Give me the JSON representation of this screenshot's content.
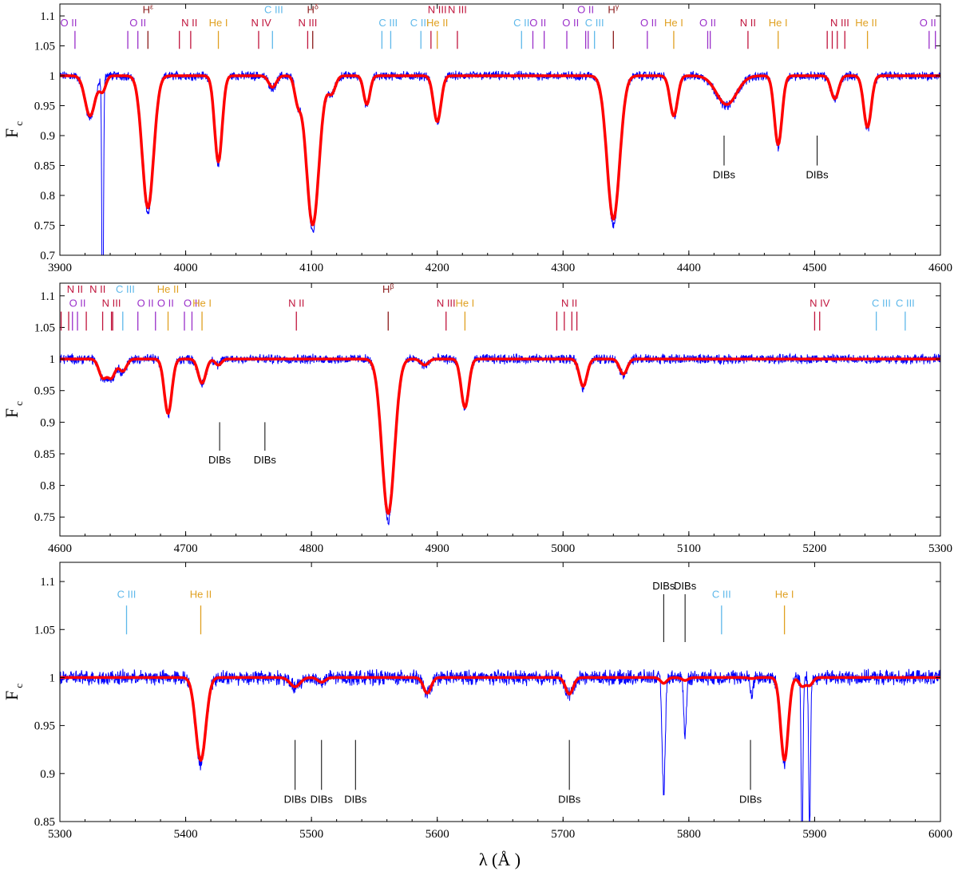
{
  "colors": {
    "observed": "#0000ff",
    "model": "#ff0000",
    "OII": "#9a2fc9",
    "NII": "#c0143c",
    "NIII": "#c0143c",
    "NIV": "#c0143c",
    "CIII": "#5eb8ea",
    "CII": "#5eb8ea",
    "HeI": "#e0a020",
    "HeII": "#e0a020",
    "H": "#8b1a1a",
    "DIB": "#000000"
  },
  "labels": {
    "ylabel_main": "F",
    "ylabel_sub": "c",
    "xlabel": "λ (Å )"
  },
  "chart_data": [
    {
      "type": "line",
      "xlim": [
        3900,
        4600
      ],
      "ylim": [
        0.7,
        1.12
      ],
      "xticks": [
        3900,
        4000,
        4100,
        4200,
        4300,
        4400,
        4500,
        4600
      ],
      "yticks": [
        "0.7",
        "0.75",
        "0.8",
        "0.85",
        "0.9",
        "0.95",
        "1",
        "1.05",
        "1.1"
      ],
      "absorption_lines": [
        {
          "x": 3924,
          "depth": 0.07,
          "width": 4
        },
        {
          "x": 3934,
          "depth": 0.5,
          "width": 0.6
        },
        {
          "x": 3970,
          "depth": 0.23,
          "width": 4.5
        },
        {
          "x": 4026,
          "depth": 0.15,
          "width": 3
        },
        {
          "x": 4069,
          "depth": 0.02,
          "width": 3
        },
        {
          "x": 4089,
          "depth": 0.04,
          "width": 2
        },
        {
          "x": 4101,
          "depth": 0.26,
          "width": 5
        },
        {
          "x": 4116,
          "depth": 0.03,
          "width": 3
        },
        {
          "x": 4144,
          "depth": 0.05,
          "width": 2.5
        },
        {
          "x": 4200,
          "depth": 0.08,
          "width": 3
        },
        {
          "x": 4340,
          "depth": 0.25,
          "width": 5
        },
        {
          "x": 4388,
          "depth": 0.07,
          "width": 3
        },
        {
          "x": 4430,
          "depth": 0.05,
          "width": 8
        },
        {
          "x": 4471,
          "depth": 0.12,
          "width": 3
        },
        {
          "x": 4516,
          "depth": 0.04,
          "width": 3
        },
        {
          "x": 4542,
          "depth": 0.09,
          "width": 3
        }
      ],
      "line_ids": [
        {
          "label": "O II",
          "x": 3907,
          "color": "OII",
          "marks": [
            3912
          ],
          "row": 1
        },
        {
          "label": "O II",
          "x": 3962,
          "color": "OII",
          "marks": [
            3954,
            3962
          ],
          "row": 1
        },
        {
          "label": "Hε",
          "x": 3970,
          "color": "H",
          "marks": [
            3970
          ],
          "row": 0
        },
        {
          "label": "N II",
          "x": 4003,
          "color": "NII",
          "marks": [
            3995,
            4004
          ],
          "row": 1
        },
        {
          "label": "He I",
          "x": 4026,
          "color": "HeI",
          "marks": [
            4026
          ],
          "row": 1
        },
        {
          "label": "N IV",
          "x": 4060,
          "color": "NIV",
          "marks": [
            4058
          ],
          "row": 1
        },
        {
          "label": "C III",
          "x": 4070,
          "color": "CIII",
          "marks": [
            4069
          ],
          "row": 0
        },
        {
          "label": "N III",
          "x": 4097,
          "color": "NII",
          "marks": [
            4097
          ],
          "row": 1
        },
        {
          "label": "Hδ",
          "x": 4101,
          "color": "H",
          "marks": [
            4101
          ],
          "row": 0
        },
        {
          "label": "C III",
          "x": 4161,
          "color": "CIII",
          "marks": [
            4156,
            4163
          ],
          "row": 1
        },
        {
          "label": "C III",
          "x": 4186,
          "color": "CIII",
          "marks": [
            4187
          ],
          "row": 1
        },
        {
          "label": "N III",
          "x": 4200,
          "color": "NIII",
          "marks": [
            4195
          ],
          "row": 0
        },
        {
          "label": "He II",
          "x": 4200,
          "color": "HeII",
          "marks": [
            4200
          ],
          "row": 1
        },
        {
          "label": "N III",
          "x": 4216,
          "color": "NIII",
          "marks": [
            4216
          ],
          "row": 0
        },
        {
          "label": "C II",
          "x": 4267,
          "color": "CII",
          "marks": [
            4267
          ],
          "row": 1
        },
        {
          "label": "O II",
          "x": 4280,
          "color": "OII",
          "marks": [
            4276,
            4285
          ],
          "row": 1
        },
        {
          "label": "O II",
          "x": 4318,
          "color": "OII",
          "marks": [
            4318,
            4320
          ],
          "row": 0
        },
        {
          "label": "O II",
          "x": 4306,
          "color": "OII",
          "marks": [
            4303
          ],
          "row": 1
        },
        {
          "label": "C III",
          "x": 4325,
          "color": "CIII",
          "marks": [
            4325
          ],
          "row": 1
        },
        {
          "label": "Hγ",
          "x": 4340,
          "color": "H",
          "marks": [
            4340
          ],
          "row": 0
        },
        {
          "label": "O II",
          "x": 4368,
          "color": "OII",
          "marks": [
            4367
          ],
          "row": 1
        },
        {
          "label": "He I",
          "x": 4388,
          "color": "HeI",
          "marks": [
            4388
          ],
          "row": 1
        },
        {
          "label": "O II",
          "x": 4415,
          "color": "OII",
          "marks": [
            4415,
            4417
          ],
          "row": 1
        },
        {
          "label": "N II",
          "x": 4447,
          "color": "NII",
          "marks": [
            4447
          ],
          "row": 1
        },
        {
          "label": "He I",
          "x": 4471,
          "color": "HeI",
          "marks": [
            4471
          ],
          "row": 1
        },
        {
          "label": "N III",
          "x": 4520,
          "color": "NIII",
          "marks": [
            4510,
            4514,
            4518,
            4524
          ],
          "row": 1
        },
        {
          "label": "He II",
          "x": 4541,
          "color": "HeII",
          "marks": [
            4542
          ],
          "row": 1
        },
        {
          "label": "O II",
          "x": 4590,
          "color": "OII",
          "marks": [
            4591,
            4596
          ],
          "row": 1
        }
      ],
      "dibs": [
        {
          "x": 4428,
          "label": "DIBs"
        },
        {
          "x": 4502,
          "label": "DIBs"
        }
      ]
    },
    {
      "type": "line",
      "xlim": [
        4600,
        5300
      ],
      "ylim": [
        0.72,
        1.12
      ],
      "xticks": [
        4600,
        4700,
        4800,
        4900,
        5000,
        5100,
        5200,
        5300
      ],
      "yticks": [
        "0.75",
        "0.8",
        "0.85",
        "0.9",
        "0.95",
        "1",
        "1.05",
        "1.1"
      ],
      "absorption_lines": [
        {
          "x": 4634,
          "depth": 0.03,
          "width": 3
        },
        {
          "x": 4641,
          "depth": 0.03,
          "width": 3
        },
        {
          "x": 4650,
          "depth": 0.02,
          "width": 3
        },
        {
          "x": 4686,
          "depth": 0.09,
          "width": 3
        },
        {
          "x": 4713,
          "depth": 0.04,
          "width": 3
        },
        {
          "x": 4726,
          "depth": 0.01,
          "width": 2
        },
        {
          "x": 4861,
          "depth": 0.255,
          "width": 5
        },
        {
          "x": 4890,
          "depth": 0.01,
          "width": 3
        },
        {
          "x": 4922,
          "depth": 0.08,
          "width": 3
        },
        {
          "x": 5016,
          "depth": 0.045,
          "width": 3
        },
        {
          "x": 5048,
          "depth": 0.025,
          "width": 3
        }
      ],
      "line_ids": [
        {
          "label": "N II",
          "x": 4612,
          "color": "NII",
          "marks": [
            4601,
            4607
          ],
          "row": 0
        },
        {
          "label": "N II",
          "x": 4630,
          "color": "NII",
          "marks": [
            4621
          ],
          "row": 0
        },
        {
          "label": "O II",
          "x": 4614,
          "color": "OII",
          "marks": [
            4610,
            4614
          ],
          "row": 1
        },
        {
          "label": "N III",
          "x": 4641,
          "color": "NIII",
          "marks": [
            4634,
            4641,
            4642
          ],
          "row": 1
        },
        {
          "label": "C III",
          "x": 4652,
          "color": "CIII",
          "marks": [
            4650
          ],
          "row": 0
        },
        {
          "label": "O II",
          "x": 4668,
          "color": "OII",
          "marks": [
            4662
          ],
          "row": 1
        },
        {
          "label": "O II",
          "x": 4684,
          "color": "OII",
          "marks": [
            4676
          ],
          "row": 1
        },
        {
          "label": "He II",
          "x": 4686,
          "color": "HeII",
          "marks": [
            4686
          ],
          "row": 0
        },
        {
          "label": "O II",
          "x": 4705,
          "color": "OII",
          "marks": [
            4699,
            4705
          ],
          "row": 1
        },
        {
          "label": "He I",
          "x": 4713,
          "color": "HeI",
          "marks": [
            4713
          ],
          "row": 1
        },
        {
          "label": "N II",
          "x": 4788,
          "color": "NII",
          "marks": [
            4788
          ],
          "row": 1
        },
        {
          "label": "Hβ",
          "x": 4861,
          "color": "H",
          "marks": [
            4861
          ],
          "row": 0
        },
        {
          "label": "N III",
          "x": 4907,
          "color": "NIII",
          "marks": [
            4907
          ],
          "row": 1
        },
        {
          "label": "He I",
          "x": 4922,
          "color": "HeI",
          "marks": [
            4922
          ],
          "row": 1
        },
        {
          "label": "N II",
          "x": 5005,
          "color": "NII",
          "marks": [
            4995,
            5001,
            5007,
            5011
          ],
          "row": 1
        },
        {
          "label": "N IV",
          "x": 5204,
          "color": "NIV",
          "marks": [
            5200,
            5204
          ],
          "row": 1
        },
        {
          "label": "C III",
          "x": 5253,
          "color": "CIII",
          "marks": [
            5249
          ],
          "row": 1
        },
        {
          "label": "C III",
          "x": 5272,
          "color": "CIII",
          "marks": [
            5272
          ],
          "row": 1
        }
      ],
      "dibs": [
        {
          "x": 4727,
          "label": "DIBs"
        },
        {
          "x": 4763,
          "label": "DIBs"
        }
      ]
    },
    {
      "type": "line",
      "xlim": [
        5300,
        6000
      ],
      "ylim": [
        0.85,
        1.12
      ],
      "xticks": [
        5300,
        5400,
        5500,
        5600,
        5700,
        5800,
        5900,
        6000
      ],
      "yticks": [
        "0.85",
        "0.9",
        "0.95",
        "1",
        "1.05",
        "1.1"
      ],
      "absorption_lines": [
        {
          "x": 5412,
          "depth": 0.09,
          "width": 4
        },
        {
          "x": 5487,
          "depth": 0.01,
          "width": 4
        },
        {
          "x": 5508,
          "depth": 0.005,
          "width": 3
        },
        {
          "x": 5592,
          "depth": 0.017,
          "width": 3
        },
        {
          "x": 5705,
          "depth": 0.018,
          "width": 3
        },
        {
          "x": 5780,
          "depth": 0.12,
          "width": 1.2
        },
        {
          "x": 5797,
          "depth": 0.06,
          "width": 1
        },
        {
          "x": 5850,
          "depth": 0.02,
          "width": 1
        },
        {
          "x": 5876,
          "depth": 0.09,
          "width": 3
        },
        {
          "x": 5890,
          "depth": 0.18,
          "width": 0.7
        },
        {
          "x": 5896,
          "depth": 0.16,
          "width": 0.7
        }
      ],
      "line_ids": [
        {
          "label": "C III",
          "x": 5353,
          "color": "CIII",
          "marks": [
            5353
          ],
          "row": 1
        },
        {
          "label": "He II",
          "x": 5412,
          "color": "HeII",
          "marks": [
            5412
          ],
          "row": 1
        },
        {
          "label": "C III",
          "x": 5826,
          "color": "CIII",
          "marks": [
            5826
          ],
          "row": 1
        },
        {
          "label": "He I",
          "x": 5876,
          "color": "HeI",
          "marks": [
            5876
          ],
          "row": 1
        }
      ],
      "dibs": [
        {
          "x": 5487,
          "label": "DIBs"
        },
        {
          "x": 5508,
          "label": "DIBs"
        },
        {
          "x": 5535,
          "label": "DIBs"
        },
        {
          "x": 5705,
          "label": "DIBs"
        },
        {
          "x": 5849,
          "label": "DIBs"
        },
        {
          "x": 5780,
          "label": "DIBs",
          "top": true
        },
        {
          "x": 5797,
          "label": "DIBs",
          "top": true
        }
      ]
    }
  ]
}
